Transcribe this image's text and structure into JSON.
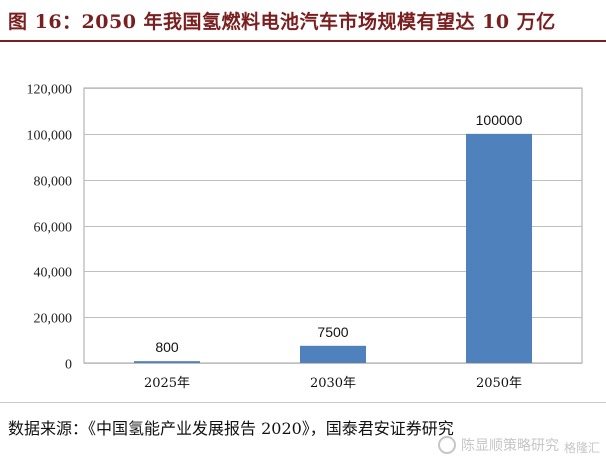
{
  "title": "图 16：2050 年我国氢燃料电池汽车市场规模有望达 10 万亿",
  "source": "数据来源：《中国氢能产业发展报告 2020》，国泰君安证券研究",
  "watermark": {
    "name": "陈显顺策略研究",
    "sub": "格隆汇"
  },
  "colors": {
    "bar": "#4f81bd",
    "title": "#7a1f1f"
  },
  "chart_data": {
    "type": "bar",
    "categories": [
      "2025年",
      "2030年",
      "2050年"
    ],
    "values": [
      800,
      7500,
      100000
    ],
    "data_labels": [
      "800",
      "7500",
      "100000"
    ],
    "ylim": [
      0,
      120000
    ],
    "yticks": [
      0,
      20000,
      40000,
      60000,
      80000,
      100000,
      120000
    ],
    "ytick_labels": [
      "0",
      "20,000",
      "40,000",
      "60,000",
      "80,000",
      "100,000",
      "120,000"
    ],
    "xlabel": "",
    "ylabel": "",
    "grid": true,
    "legend": "none"
  }
}
